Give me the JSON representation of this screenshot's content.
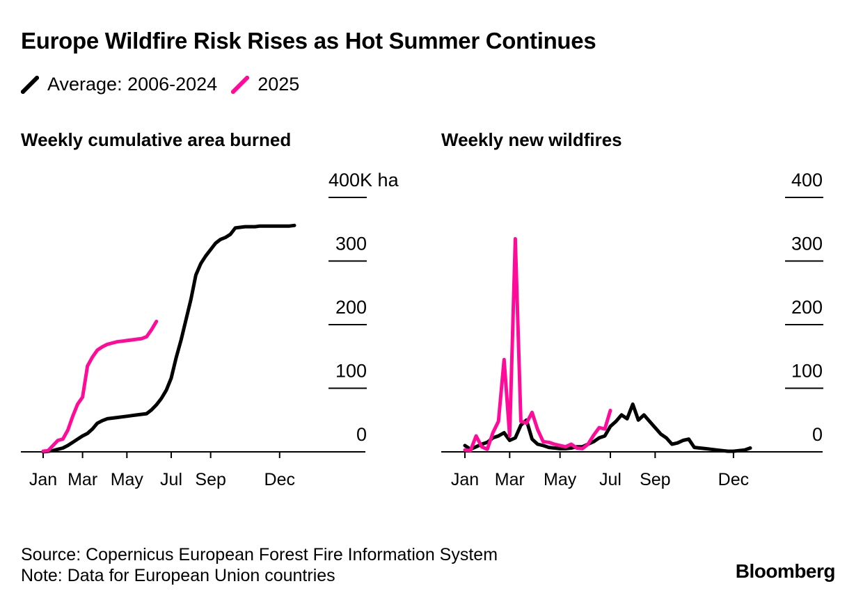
{
  "title": "Europe Wildfire Risk Rises as Hot Summer Continues",
  "legend": [
    {
      "label": "Average: 2006-2024",
      "color": "#000000"
    },
    {
      "label": "2025",
      "color": "#ff0a99"
    }
  ],
  "footer": {
    "source": "Source: Copernicus European Forest Fire Information System",
    "note": "Note: Data for European Union countries",
    "brand": "Bloomberg"
  },
  "chart_data": [
    {
      "type": "line",
      "title": "Weekly cumulative area burned",
      "y_ticks": [
        "0",
        "100",
        "200",
        "300",
        "400K ha"
      ],
      "ylim": [
        0,
        400
      ],
      "x_ticks": [
        "Jan",
        "Mar",
        "May",
        "Jul",
        "Sep",
        "Dec"
      ],
      "x_tick_weeks": [
        1,
        9,
        18,
        27,
        35,
        49
      ],
      "xlim": [
        1,
        52
      ],
      "grid": "horizontal",
      "series": [
        {
          "name": "Average: 2006-2024",
          "color": "#000000",
          "points": [
            [
              1,
              0
            ],
            [
              2,
              1
            ],
            [
              3,
              2
            ],
            [
              4,
              4
            ],
            [
              5,
              6
            ],
            [
              6,
              10
            ],
            [
              7,
              15
            ],
            [
              8,
              20
            ],
            [
              9,
              25
            ],
            [
              10,
              29
            ],
            [
              11,
              36
            ],
            [
              12,
              45
            ],
            [
              13,
              49
            ],
            [
              14,
              52
            ],
            [
              15,
              53
            ],
            [
              16,
              54
            ],
            [
              17,
              55
            ],
            [
              18,
              56
            ],
            [
              19,
              57
            ],
            [
              20,
              58
            ],
            [
              21,
              59
            ],
            [
              22,
              60
            ],
            [
              23,
              66
            ],
            [
              24,
              74
            ],
            [
              25,
              84
            ],
            [
              26,
              97
            ],
            [
              27,
              116
            ],
            [
              28,
              148
            ],
            [
              29,
              176
            ],
            [
              30,
              208
            ],
            [
              31,
              240
            ],
            [
              32,
              278
            ],
            [
              33,
              296
            ],
            [
              34,
              308
            ],
            [
              35,
              318
            ],
            [
              36,
              328
            ],
            [
              37,
              334
            ],
            [
              38,
              337
            ],
            [
              39,
              342
            ],
            [
              40,
              352
            ],
            [
              41,
              353
            ],
            [
              42,
              354
            ],
            [
              43,
              354
            ],
            [
              44,
              354
            ],
            [
              45,
              355
            ],
            [
              46,
              355
            ],
            [
              47,
              355
            ],
            [
              48,
              355
            ],
            [
              49,
              355
            ],
            [
              50,
              355
            ],
            [
              51,
              355
            ],
            [
              52,
              356
            ]
          ]
        },
        {
          "name": "2025",
          "color": "#ff0a99",
          "points": [
            [
              1,
              1
            ],
            [
              2,
              2
            ],
            [
              3,
              10
            ],
            [
              4,
              18
            ],
            [
              5,
              20
            ],
            [
              6,
              34
            ],
            [
              7,
              56
            ],
            [
              8,
              75
            ],
            [
              9,
              86
            ],
            [
              10,
              135
            ],
            [
              11,
              149
            ],
            [
              12,
              160
            ],
            [
              13,
              165
            ],
            [
              14,
              169
            ],
            [
              15,
              171
            ],
            [
              16,
              173
            ],
            [
              17,
              174
            ],
            [
              18,
              175
            ],
            [
              19,
              176
            ],
            [
              20,
              177
            ],
            [
              21,
              178
            ],
            [
              22,
              181
            ],
            [
              23,
              192
            ],
            [
              24,
              205
            ]
          ]
        }
      ]
    },
    {
      "type": "line",
      "title": "Weekly new wildfires",
      "y_ticks": [
        "0",
        "100",
        "200",
        "300",
        "400"
      ],
      "ylim": [
        0,
        400
      ],
      "x_ticks": [
        "Jan",
        "Mar",
        "May",
        "Jul",
        "Sep",
        "Dec"
      ],
      "x_tick_weeks": [
        1,
        9,
        18,
        27,
        35,
        49
      ],
      "xlim": [
        1,
        52
      ],
      "grid": "horizontal",
      "series": [
        {
          "name": "Average: 2006-2024",
          "color": "#000000",
          "points": [
            [
              1,
              10
            ],
            [
              2,
              4
            ],
            [
              3,
              8
            ],
            [
              4,
              12
            ],
            [
              5,
              15
            ],
            [
              6,
              22
            ],
            [
              7,
              25
            ],
            [
              8,
              30
            ],
            [
              9,
              18
            ],
            [
              10,
              22
            ],
            [
              11,
              42
            ],
            [
              12,
              50
            ],
            [
              13,
              20
            ],
            [
              14,
              12
            ],
            [
              15,
              10
            ],
            [
              16,
              7
            ],
            [
              17,
              6
            ],
            [
              18,
              5
            ],
            [
              19,
              5
            ],
            [
              20,
              6
            ],
            [
              21,
              8
            ],
            [
              22,
              8
            ],
            [
              23,
              12
            ],
            [
              24,
              16
            ],
            [
              25,
              22
            ],
            [
              26,
              25
            ],
            [
              27,
              40
            ],
            [
              28,
              48
            ],
            [
              29,
              58
            ],
            [
              30,
              52
            ],
            [
              31,
              75
            ],
            [
              32,
              50
            ],
            [
              33,
              58
            ],
            [
              34,
              48
            ],
            [
              35,
              38
            ],
            [
              36,
              28
            ],
            [
              37,
              22
            ],
            [
              38,
              12
            ],
            [
              39,
              14
            ],
            [
              40,
              18
            ],
            [
              41,
              20
            ],
            [
              42,
              7
            ],
            [
              43,
              6
            ],
            [
              44,
              5
            ],
            [
              45,
              4
            ],
            [
              46,
              3
            ],
            [
              47,
              2
            ],
            [
              48,
              1
            ],
            [
              49,
              1
            ],
            [
              50,
              2
            ],
            [
              51,
              3
            ],
            [
              52,
              6
            ]
          ]
        },
        {
          "name": "2025",
          "color": "#ff0a99",
          "points": [
            [
              1,
              3
            ],
            [
              2,
              2
            ],
            [
              3,
              25
            ],
            [
              4,
              8
            ],
            [
              5,
              4
            ],
            [
              6,
              30
            ],
            [
              7,
              48
            ],
            [
              8,
              145
            ],
            [
              9,
              25
            ],
            [
              10,
              335
            ],
            [
              11,
              48
            ],
            [
              12,
              45
            ],
            [
              13,
              62
            ],
            [
              14,
              35
            ],
            [
              15,
              16
            ],
            [
              16,
              15
            ],
            [
              17,
              12
            ],
            [
              18,
              10
            ],
            [
              19,
              8
            ],
            [
              20,
              12
            ],
            [
              21,
              6
            ],
            [
              22,
              5
            ],
            [
              23,
              12
            ],
            [
              24,
              26
            ],
            [
              25,
              38
            ],
            [
              26,
              36
            ],
            [
              27,
              65
            ]
          ]
        }
      ]
    }
  ]
}
